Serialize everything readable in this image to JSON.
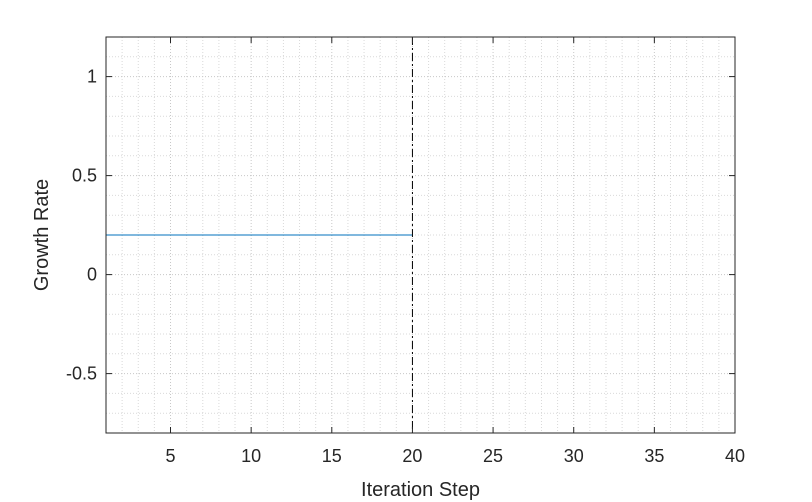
{
  "chart_data": {
    "type": "line",
    "title": "",
    "xlabel": "Iteration Step",
    "ylabel": "Growth Rate",
    "xlim": [
      1,
      40
    ],
    "ylim": [
      -0.8,
      1.2
    ],
    "xticks": [
      5,
      10,
      15,
      20,
      25,
      30,
      35,
      40
    ],
    "xtick_labels": [
      "5",
      "10",
      "15",
      "20",
      "25",
      "30",
      "35",
      "40"
    ],
    "yticks": [
      -0.5,
      0,
      0.5,
      1
    ],
    "ytick_labels": [
      "-0.5",
      "0",
      "0.5",
      "1"
    ],
    "grid": true,
    "minor_grid": true,
    "series": [
      {
        "x": [
          1,
          20
        ],
        "y": [
          0.2,
          0.2
        ],
        "color": "#0072BD"
      }
    ],
    "vertical_lines": [
      {
        "x": 20,
        "style": "dash-dot",
        "color": "#000000"
      }
    ]
  }
}
